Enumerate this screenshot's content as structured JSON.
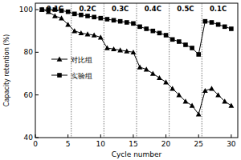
{
  "chart_data": {
    "type": "line",
    "x_label": "Cycle number",
    "y_label": "Capacity retention (%)",
    "x": [
      1,
      2,
      3,
      4,
      5,
      6,
      7,
      8,
      9,
      10,
      11,
      12,
      13,
      14,
      15,
      16,
      17,
      18,
      19,
      20,
      21,
      22,
      23,
      24,
      25,
      26,
      27,
      28,
      29,
      30
    ],
    "series": [
      {
        "name": "对比组",
        "color": "#000000",
        "marker": "triangle",
        "line_style": "solid",
        "values": [
          100,
          99,
          97,
          96,
          93,
          90,
          89,
          88.5,
          88,
          87,
          82,
          81.5,
          81,
          80.5,
          80,
          73,
          72,
          70,
          68,
          66,
          63,
          60,
          57,
          55,
          51,
          62,
          63,
          60,
          57,
          55
        ]
      },
      {
        "name": "实验组",
        "color": "#000000",
        "marker": "square",
        "line_style": "solid",
        "values": [
          100,
          100,
          100,
          99.5,
          99,
          98,
          97.5,
          97,
          96.5,
          96,
          95.5,
          95,
          94.5,
          94,
          93.5,
          92,
          91,
          90,
          89,
          88,
          86,
          85,
          83.5,
          82,
          79,
          94.5,
          94,
          93,
          92,
          91
        ]
      }
    ],
    "annotations": [
      {
        "text": "0.1C",
        "start": 0.5,
        "end": 5.5
      },
      {
        "text": "0.2C",
        "start": 5.5,
        "end": 10.5
      },
      {
        "text": "0.3C",
        "start": 10.5,
        "end": 15.5
      },
      {
        "text": "0.4C",
        "start": 15.5,
        "end": 20.5
      },
      {
        "text": "0.5C",
        "start": 20.5,
        "end": 25.5
      },
      {
        "text": "0.1C",
        "start": 25.5,
        "end": 30.5
      }
    ],
    "xlim": [
      0,
      31
    ],
    "xticks": [
      0,
      5,
      10,
      15,
      20,
      25,
      30
    ],
    "ylim": [
      40,
      103
    ],
    "yticks": [
      40,
      60,
      80,
      100
    ],
    "grid": false,
    "legend": "center left"
  }
}
